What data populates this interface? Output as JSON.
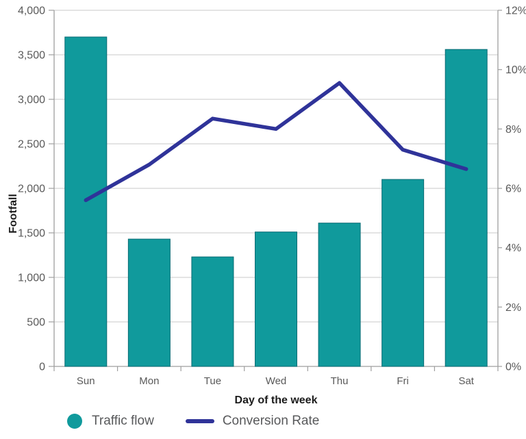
{
  "chart_data": {
    "type": "combo-bar-line",
    "categories": [
      "Sun",
      "Mon",
      "Tue",
      "Wed",
      "Thu",
      "Fri",
      "Sat"
    ],
    "series": [
      {
        "name": "Traffic flow",
        "type": "bar",
        "axis": "left",
        "values": [
          3700,
          1430,
          1230,
          1510,
          1610,
          2100,
          3560
        ]
      },
      {
        "name": "Conversion Rate",
        "type": "line",
        "axis": "right",
        "values": [
          5.6,
          6.8,
          8.35,
          8.0,
          9.55,
          7.3,
          6.65
        ]
      }
    ],
    "xlabel": "Day of the week",
    "ylabel_left": "Footfall",
    "y_left": {
      "min": 0,
      "max": 4000,
      "step": 500,
      "tick_labels": [
        "0",
        "500",
        "1,000",
        "1,500",
        "2,000",
        "2,500",
        "3,000",
        "3,500",
        "4,000"
      ]
    },
    "y_right": {
      "min": 0,
      "max": 12,
      "step": 2,
      "tick_labels": [
        "0%",
        "2%",
        "4%",
        "6%",
        "8%",
        "10%",
        "12%"
      ]
    },
    "grid": true,
    "legend_position": "bottom",
    "colors": {
      "bar": "#109a9c",
      "bar_border": "#0a6b74",
      "line": "#2f3399",
      "gridline": "#c9c9c9",
      "axis": "#9e9e9e",
      "tick_label": "#595959",
      "axis_title": "#1c1c1c",
      "legend_text": "#58595b"
    }
  },
  "legend": {
    "items": [
      {
        "label": "Traffic flow",
        "marker": "circle"
      },
      {
        "label": "Conversion Rate",
        "marker": "line"
      }
    ]
  }
}
